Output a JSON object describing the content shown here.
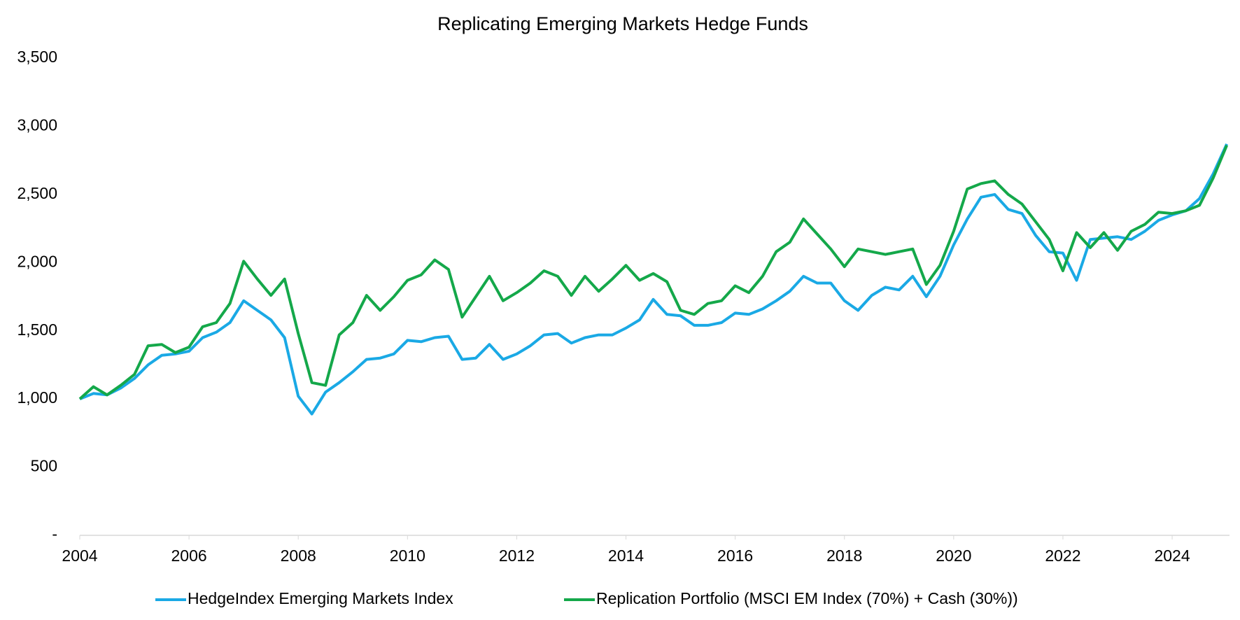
{
  "chart_data": {
    "type": "line",
    "title": "Replicating Emerging Markets Hedge Funds",
    "x": [
      2004,
      2004.25,
      2004.5,
      2004.75,
      2005,
      2005.25,
      2005.5,
      2005.75,
      2006,
      2006.25,
      2006.5,
      2006.75,
      2007,
      2007.25,
      2007.5,
      2007.75,
      2008,
      2008.25,
      2008.5,
      2008.75,
      2009,
      2009.25,
      2009.5,
      2009.75,
      2010,
      2010.25,
      2010.5,
      2010.75,
      2011,
      2011.25,
      2011.5,
      2011.75,
      2012,
      2012.25,
      2012.5,
      2012.75,
      2013,
      2013.25,
      2013.5,
      2013.75,
      2014,
      2014.25,
      2014.5,
      2014.75,
      2015,
      2015.25,
      2015.5,
      2015.75,
      2016,
      2016.25,
      2016.5,
      2016.75,
      2017,
      2017.25,
      2017.5,
      2017.75,
      2018,
      2018.25,
      2018.5,
      2018.75,
      2019,
      2019.25,
      2019.5,
      2019.75,
      2020,
      2020.25,
      2020.5,
      2020.75,
      2021,
      2021.25,
      2021.5,
      2021.75,
      2022,
      2022.25,
      2022.5,
      2022.75,
      2023,
      2023.25,
      2023.5,
      2023.75,
      2024,
      2024.25,
      2024.5,
      2024.75,
      2025
    ],
    "series": [
      {
        "name": "HedgeIndex Emerging Markets Index",
        "color": "#1aa9e5",
        "values": [
          1000,
          1040,
          1030,
          1080,
          1150,
          1250,
          1320,
          1330,
          1350,
          1450,
          1490,
          1560,
          1720,
          1650,
          1580,
          1450,
          1020,
          890,
          1050,
          1120,
          1200,
          1290,
          1300,
          1330,
          1430,
          1420,
          1450,
          1460,
          1290,
          1300,
          1400,
          1290,
          1330,
          1390,
          1470,
          1480,
          1410,
          1450,
          1470,
          1470,
          1520,
          1580,
          1730,
          1620,
          1610,
          1540,
          1540,
          1560,
          1630,
          1620,
          1660,
          1720,
          1790,
          1900,
          1850,
          1850,
          1720,
          1650,
          1760,
          1820,
          1800,
          1900,
          1750,
          1900,
          2130,
          2320,
          2480,
          2500,
          2390,
          2360,
          2200,
          2080,
          2070,
          1870,
          2170,
          2180,
          2190,
          2170,
          2230,
          2310,
          2350,
          2380,
          2470,
          2650,
          2870
        ]
      },
      {
        "name": "Replication Portfolio (MSCI EM Index (70%) + Cash (30%))",
        "color": "#14a84a",
        "values": [
          1000,
          1090,
          1030,
          1100,
          1180,
          1390,
          1400,
          1340,
          1380,
          1530,
          1560,
          1700,
          2010,
          1880,
          1760,
          1880,
          1480,
          1120,
          1100,
          1470,
          1560,
          1760,
          1650,
          1750,
          1870,
          1910,
          2020,
          1950,
          1600,
          1750,
          1900,
          1720,
          1780,
          1850,
          1940,
          1900,
          1760,
          1900,
          1790,
          1880,
          1980,
          1870,
          1920,
          1860,
          1650,
          1620,
          1700,
          1720,
          1830,
          1780,
          1900,
          2080,
          2150,
          2320,
          2210,
          2100,
          1970,
          2100,
          2080,
          2060,
          2080,
          2100,
          1840,
          1980,
          2230,
          2540,
          2580,
          2600,
          2500,
          2430,
          2300,
          2170,
          1940,
          2220,
          2110,
          2220,
          2090,
          2230,
          2280,
          2370,
          2360,
          2380,
          2420,
          2620,
          2860
        ]
      }
    ],
    "xlim": [
      2004,
      2025.05
    ],
    "xticks": [
      2004,
      2006,
      2008,
      2010,
      2012,
      2014,
      2016,
      2018,
      2020,
      2022,
      2024
    ],
    "ylim": [
      0,
      3500
    ],
    "yticks": [
      {
        "value": 0,
        "label": "-"
      },
      500,
      {
        "value": 1000,
        "label": "1,000"
      },
      {
        "value": 1500,
        "label": "1,500"
      },
      {
        "value": 2000,
        "label": "2,000"
      },
      {
        "value": 2500,
        "label": "2,500"
      },
      {
        "value": 3000,
        "label": "3,000"
      },
      {
        "value": 3500,
        "label": "3,500"
      }
    ],
    "grid": false,
    "legend": "bottom"
  }
}
